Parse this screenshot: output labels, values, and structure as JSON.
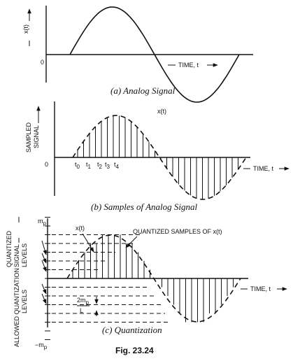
{
  "panel_a": {
    "y_label": "x(t)",
    "origin": "0",
    "time_label": "TIME, t",
    "caption": "(a) Analog Signal"
  },
  "panel_b": {
    "y_label_line1": "SAMPLED",
    "y_label_line2": "SIGNAL",
    "curve_label": "x(t)",
    "origin": "0",
    "sample_labels": [
      "t",
      "t",
      "t",
      "t",
      "t"
    ],
    "sample_subscripts": [
      "0",
      "1",
      "2",
      "3",
      "4"
    ],
    "time_label": "TIME, t",
    "caption": "(b) Samples of Analog Signal"
  },
  "panel_c": {
    "y_label_line1": "QUANTIZED",
    "y_label_line2": "SIGNAL",
    "y_label_line3": "LEVELS",
    "y_label_lower": "ALLOWED QUANTIZATION",
    "top_level": "m",
    "top_level_sub": "p",
    "bottom_level": "−m",
    "bottom_level_sub": "p",
    "curve_label": "x(t)",
    "samples_label": "QUANTIZED SAMPLES OF x(t)",
    "step_numerator": "2m",
    "step_numerator_sub": "p",
    "step_denominator": "L",
    "time_label": "TIME, t",
    "caption": "(c) Quantization"
  },
  "figure_label": "Fig. 23.24",
  "colors": {
    "ink": "#111111",
    "background": "#ffffff"
  }
}
